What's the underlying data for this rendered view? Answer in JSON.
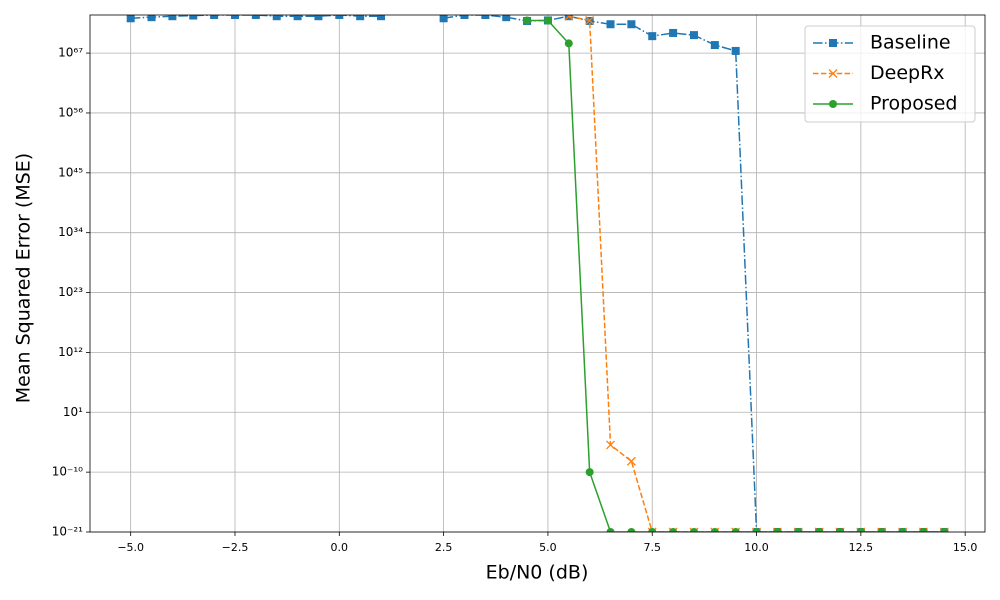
{
  "chart_data": {
    "type": "line",
    "xlabel": "Eb/N0 (dB)",
    "ylabel": "Mean Squared Error (MSE)",
    "x": [
      -5,
      -4.5,
      -4,
      -3.5,
      -3,
      -2.5,
      -2,
      -1.5,
      -1,
      -0.5,
      0,
      0.5,
      1,
      1.5,
      2,
      2.5,
      3,
      3.5,
      4,
      4.5,
      5,
      5.5,
      6,
      6.5,
      7,
      7.5,
      8,
      8.5,
      9,
      9.5,
      10,
      10.5,
      11,
      11.5,
      12,
      12.5,
      13,
      13.5,
      14,
      14.5
    ],
    "series": [
      {
        "name": "Baseline",
        "color": "#1f77b4",
        "linestyle": "dashdot",
        "marker": "square",
        "values": [
          2.5e+73,
          4e+73,
          6e+73,
          8e+73,
          1e+74,
          1e+74,
          1e+74,
          6e+73,
          6e+73,
          6e+73,
          1e+74,
          6e+73,
          6e+73,
          null,
          null,
          2.5e+73,
          1e+74,
          1e+74,
          4e+73,
          8e+72,
          1e+73,
          6e+73,
          8e+72,
          2e+72,
          2e+72,
          1.3e+70,
          5e+70,
          2e+70,
          3e+68,
          2.5e+67,
          1e-21,
          1e-21,
          1e-21,
          1e-21,
          1e-21,
          1e-21,
          1e-21,
          1e-21,
          1e-21,
          1e-21
        ]
      },
      {
        "name": "DeepRx",
        "color": "#ff7f0e",
        "linestyle": "dashed",
        "marker": "x",
        "values": [
          null,
          null,
          null,
          null,
          null,
          null,
          null,
          null,
          null,
          null,
          null,
          null,
          null,
          null,
          null,
          null,
          null,
          null,
          null,
          null,
          null,
          6e+73,
          1e+73,
          1e-05,
          1e-08,
          1e-21,
          1e-21,
          1e-21,
          1e-21,
          1e-21,
          1e-21,
          1e-21,
          1e-21,
          1e-21,
          1e-21,
          1e-21,
          1e-21,
          1e-21,
          1e-21,
          1e-21
        ]
      },
      {
        "name": "Proposed",
        "color": "#2ca02c",
        "linestyle": "solid",
        "marker": "circle",
        "values": [
          null,
          null,
          null,
          null,
          null,
          null,
          null,
          null,
          null,
          null,
          null,
          null,
          null,
          null,
          null,
          null,
          null,
          null,
          null,
          1e+73,
          1e+73,
          6e+68,
          1e-10,
          1e-21,
          1e-21,
          1e-21,
          1e-21,
          1e-21,
          1e-21,
          1e-21,
          1e-21,
          1e-21,
          1e-21,
          1e-21,
          1e-21,
          1e-21,
          1e-21,
          1e-21,
          1e-21,
          1e-21
        ]
      }
    ],
    "xlim": [
      -5.975,
      15.475
    ],
    "xticks": [
      {
        "value": -5,
        "label": "−5.0"
      },
      {
        "value": -2.5,
        "label": "−2.5"
      },
      {
        "value": 0,
        "label": "0.0"
      },
      {
        "value": 2.5,
        "label": "2.5"
      },
      {
        "value": 5,
        "label": "5.0"
      },
      {
        "value": 7.5,
        "label": "7.5"
      },
      {
        "value": 10,
        "label": "10.0"
      },
      {
        "value": 12.5,
        "label": "12.5"
      },
      {
        "value": 15,
        "label": "15.0"
      }
    ],
    "ylim": [
      1e-21,
      1e+74
    ],
    "yscale": "log",
    "yticks": [
      {
        "value": 1e-21,
        "label": "10⁻²¹"
      },
      {
        "value": 1e-10,
        "label": "10⁻¹⁰"
      },
      {
        "value": 10.0,
        "label": "10¹"
      },
      {
        "value": 1000000000000.0,
        "label": "10¹²"
      },
      {
        "value": 1e+23,
        "label": "10²³"
      },
      {
        "value": 1e+34,
        "label": "10³⁴"
      },
      {
        "value": 1e+45,
        "label": "10⁴⁵"
      },
      {
        "value": 1e+56,
        "label": "10⁵⁶"
      },
      {
        "value": 1e+67,
        "label": "10⁶⁷"
      }
    ],
    "grid": true,
    "legend": "upper right"
  }
}
